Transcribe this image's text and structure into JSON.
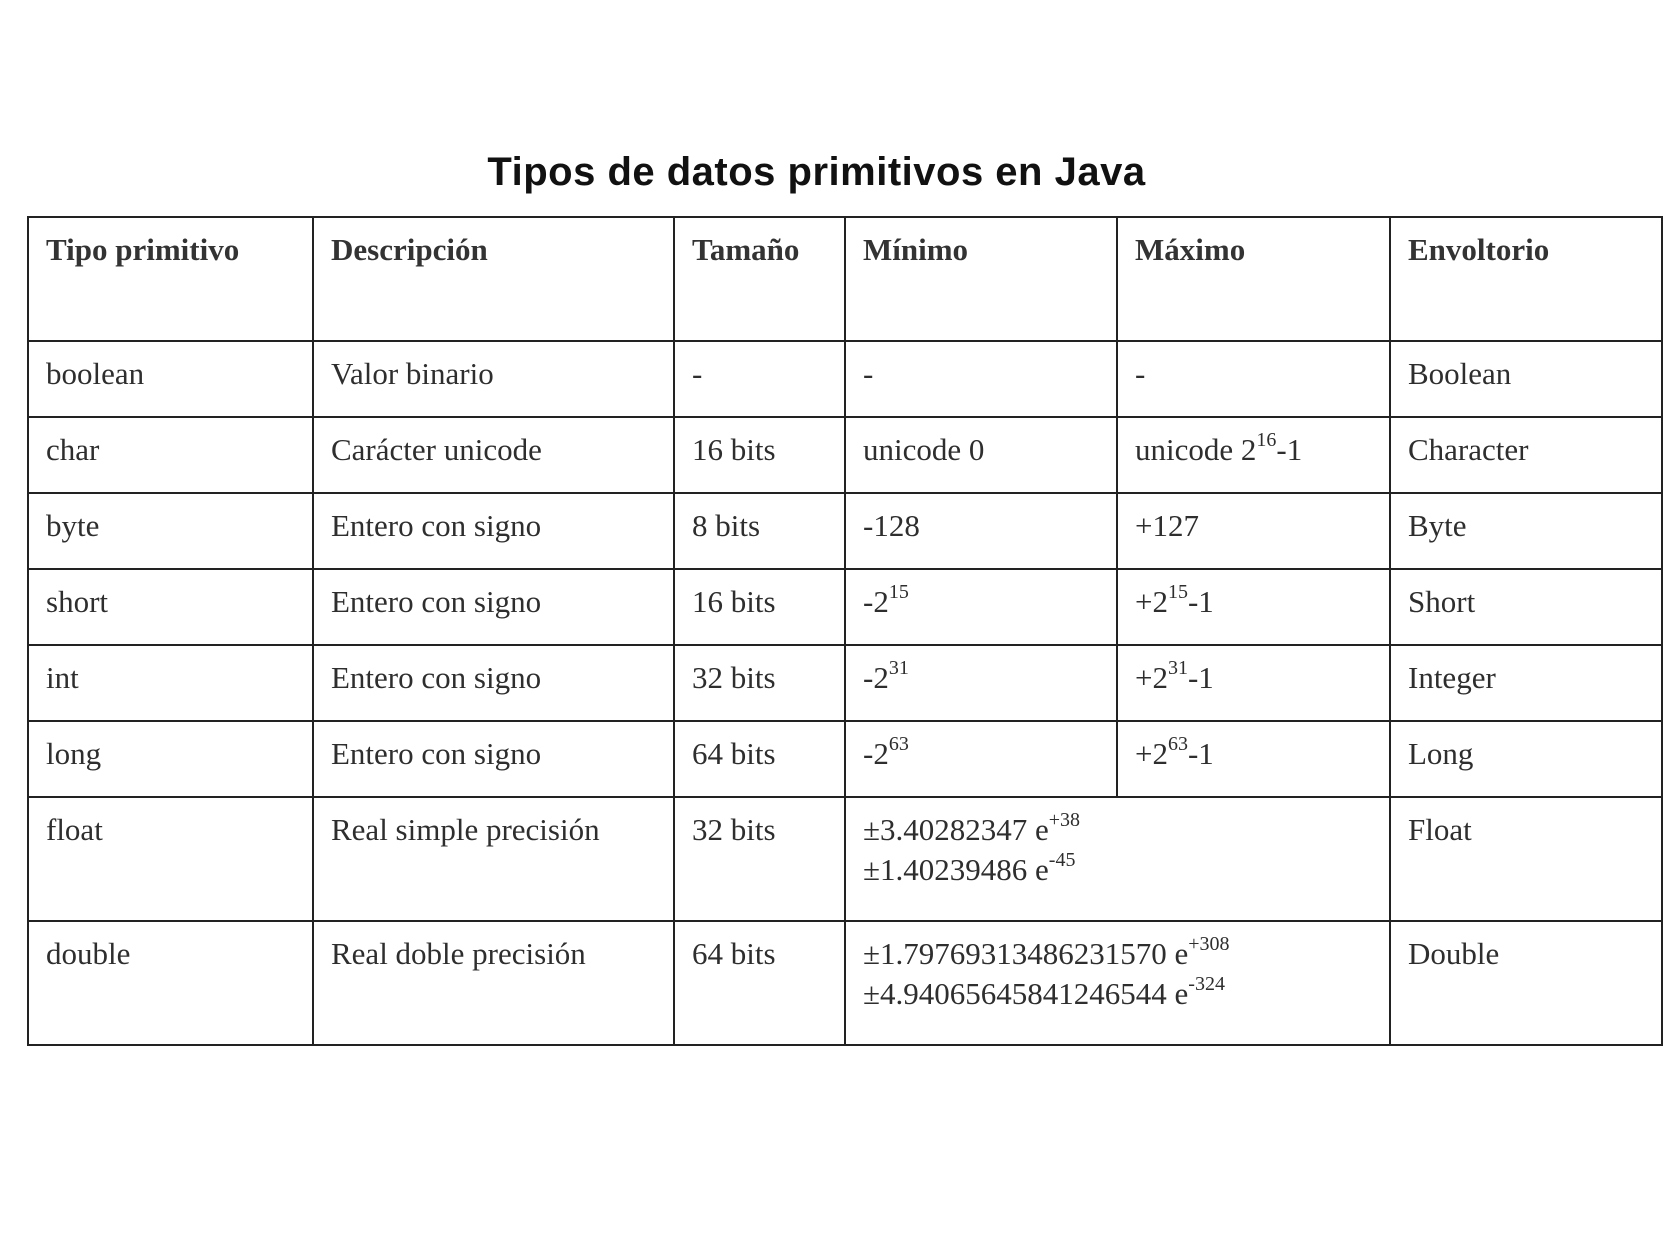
{
  "title": "Tipos de datos primitivos en Java",
  "headers": [
    "Tipo primitivo",
    "Descripción",
    "Tamaño",
    "Mínimo",
    "Máximo",
    "Envoltorio"
  ],
  "rows": [
    {
      "tipo": "boolean",
      "descripcion": "Valor binario",
      "tamano": "-",
      "min": {
        "base": "-",
        "exp": ""
      },
      "max": {
        "base": "-",
        "exp": "",
        "suffix": ""
      },
      "envoltorio": "Boolean"
    },
    {
      "tipo": "char",
      "descripcion": "Carácter unicode",
      "tamano": "16 bits",
      "min": {
        "base": "unicode 0",
        "exp": ""
      },
      "max": {
        "base": "unicode 2",
        "exp": "16",
        "suffix": "-1"
      },
      "envoltorio": "Character"
    },
    {
      "tipo": "byte",
      "descripcion": "Entero con signo",
      "tamano": "8 bits",
      "min": {
        "base": "-128",
        "exp": ""
      },
      "max": {
        "base": "+127",
        "exp": "",
        "suffix": ""
      },
      "envoltorio": "Byte"
    },
    {
      "tipo": "short",
      "descripcion": "Entero con signo",
      "tamano": "16 bits",
      "min": {
        "base": "-2",
        "exp": "15"
      },
      "max": {
        "base": "+2",
        "exp": "15",
        "suffix": "-1"
      },
      "envoltorio": "Short"
    },
    {
      "tipo": "int",
      "descripcion": "Entero con signo",
      "tamano": "32 bits",
      "min": {
        "base": "-2",
        "exp": "31"
      },
      "max": {
        "base": "+2",
        "exp": "31",
        "suffix": "-1"
      },
      "envoltorio": "Integer"
    },
    {
      "tipo": "long",
      "descripcion": "Entero con signo",
      "tamano": "64 bits",
      "min": {
        "base": "-2",
        "exp": "63"
      },
      "max": {
        "base": "+2",
        "exp": "63",
        "suffix": "-1"
      },
      "envoltorio": "Long"
    }
  ],
  "real_rows": [
    {
      "tipo": "float",
      "descripcion": "Real simple precisión",
      "tamano": "32 bits",
      "range1": {
        "base": "±3.40282347 e",
        "exp": "+38"
      },
      "range2": {
        "base": "±1.40239486 e",
        "exp": "-45"
      },
      "envoltorio": "Float"
    },
    {
      "tipo": "double",
      "descripcion": "Real doble precisión",
      "tamano": "64 bits",
      "range1": {
        "base": "±1.79769313486231570 e",
        "exp": "+308"
      },
      "range2": {
        "base": "±4.94065645841246544 e",
        "exp": "-324"
      },
      "envoltorio": "Double"
    }
  ]
}
